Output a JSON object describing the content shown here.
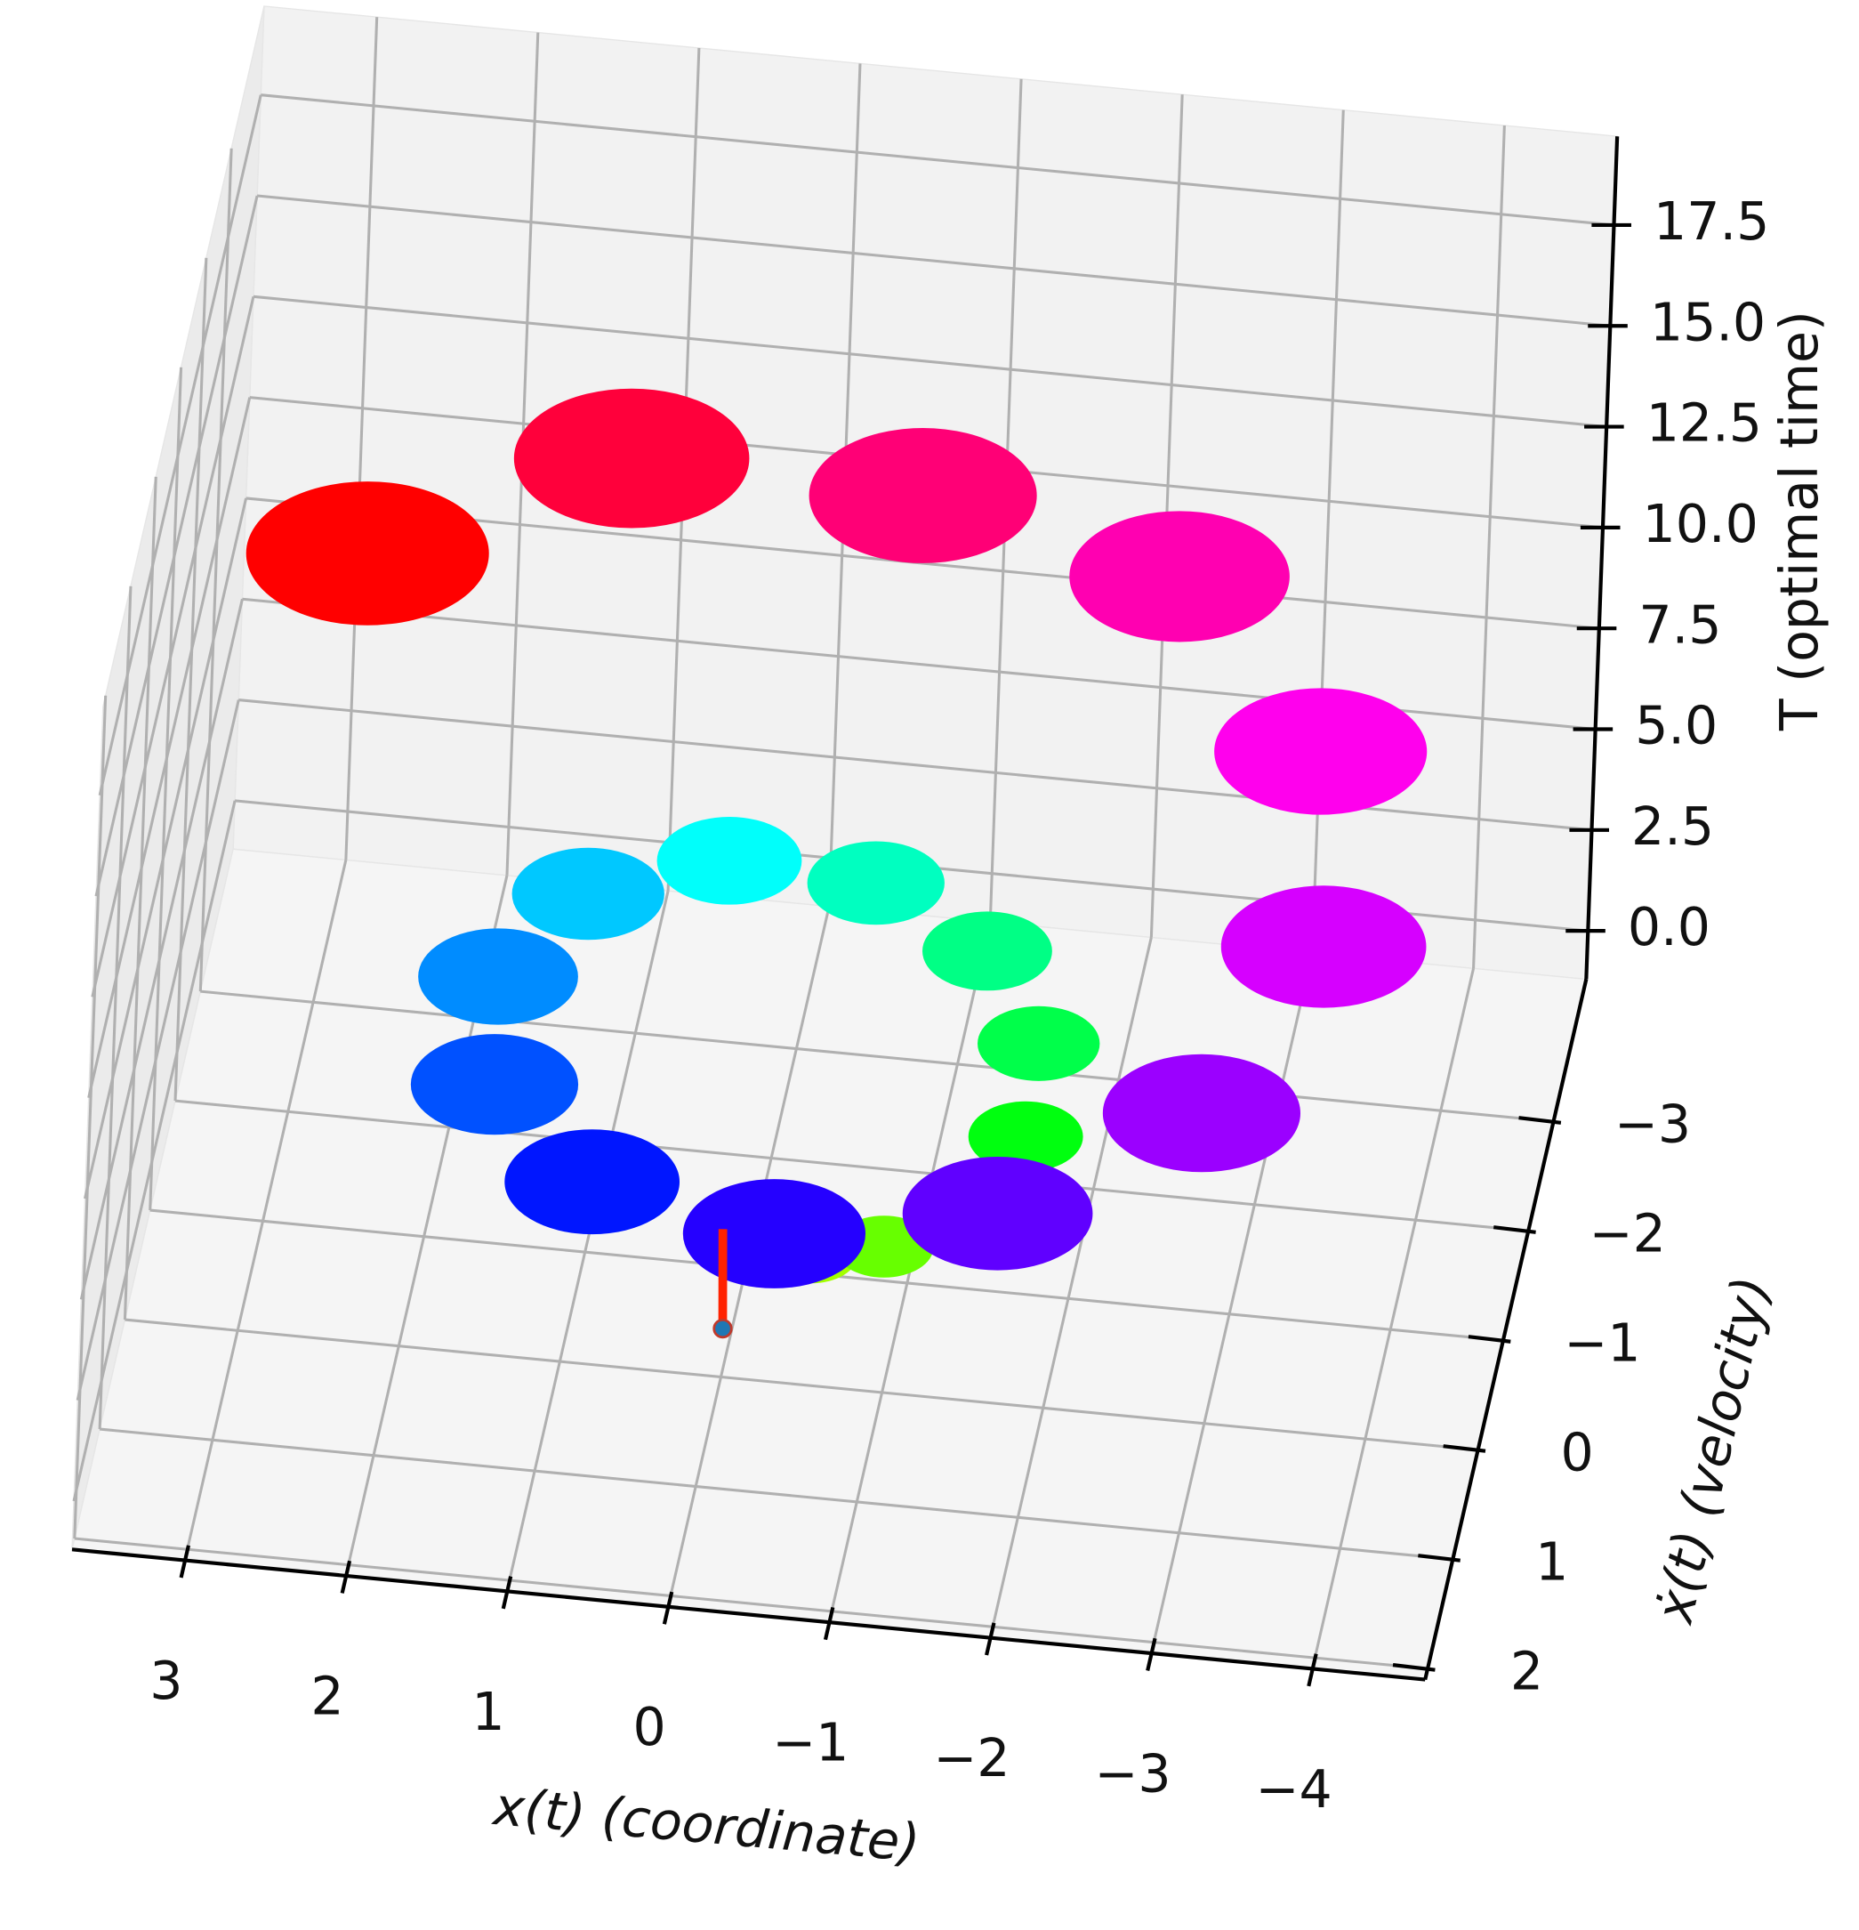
{
  "chart_data": {
    "type": "surface3d",
    "xlabel": "x(t) (coordinate)",
    "ylabel": "ẋ(t) (velocity)",
    "zlabel": "T (optimal time)",
    "xlim": [
      3.7,
      -4.7
    ],
    "ylim": [
      2.1,
      -4.3
    ],
    "zlim": [
      -1.2,
      19.7
    ],
    "xticks": [
      3,
      2,
      1,
      0,
      {
        "value": -1,
        "label": "−1"
      },
      {
        "value": -2,
        "label": "−2"
      },
      {
        "value": -3,
        "label": "−3"
      },
      {
        "value": -4,
        "label": "−4"
      }
    ],
    "yticks": [
      {
        "value": -3,
        "label": "−3"
      },
      {
        "value": -2,
        "label": "−2"
      },
      {
        "value": -1,
        "label": "−1"
      },
      0,
      1,
      2
    ],
    "zticks": [
      {
        "value": 0,
        "label": "0.0"
      },
      2.5,
      {
        "value": 5,
        "label": "5.0"
      },
      7.5,
      {
        "value": 10,
        "label": "10.0"
      },
      12.5,
      {
        "value": 15,
        "label": "15.0"
      },
      17.5
    ],
    "grid": true,
    "colormap": "hsv",
    "surface": {
      "x": [
        -0.2,
        -0.11,
        -0.2,
        -0.5,
        -0.95,
        -1.41,
        -1.7,
        -1.67,
        -1.25,
        -0.5,
        0.4,
        1.19,
        1.6,
        1.45,
        0.7,
        -0.5,
        -1.85,
        -2.97,
        -3.5,
        -3.23,
        -2.15,
        -0.5,
        1.3,
        2.75
      ],
      "y": [
        -1,
        -0.78,
        -0.48,
        -0.25,
        -0.22,
        -0.48,
        -1,
        -1.68,
        -2.3,
        -2.65,
        -2.56,
        -1.98,
        -1,
        0.13,
        1.08,
        1.55,
        1.34,
        0.43,
        -1,
        -2.58,
        -3.86,
        -4.2,
        -4.12,
        -2.88
      ],
      "z": [
        0,
        0.45,
        0.9,
        1.35,
        1.8,
        2.25,
        2.7,
        3.15,
        3.6,
        4.05,
        4.5,
        4.95,
        5.4,
        5.85,
        6.3,
        6.75,
        7.2,
        7.65,
        8.1,
        8.55,
        9.0,
        9.45,
        9.9,
        10.35
      ]
    },
    "trajectory": {
      "color": "#ff2200",
      "x": [
        0,
        0.05,
        0.1
      ],
      "y": [
        0,
        -0.3,
        -0.6
      ],
      "z": [
        0,
        0.4,
        0.8
      ]
    },
    "target": {
      "color": "#1f77b4",
      "x": 0,
      "y": 0,
      "z": 0
    }
  }
}
